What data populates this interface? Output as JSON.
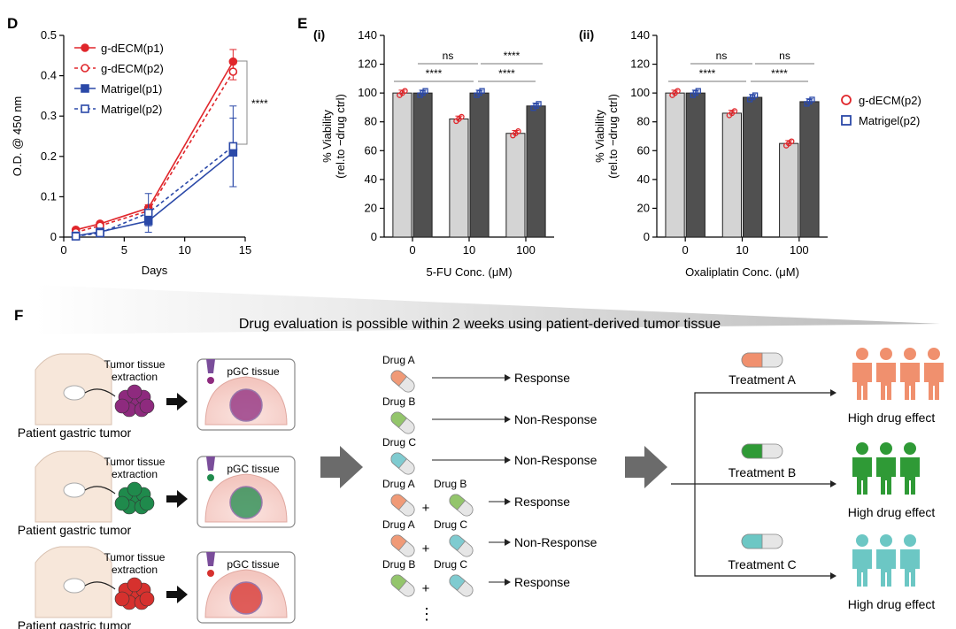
{
  "panel_labels": {
    "d": "D",
    "e": "E",
    "ei": "(i)",
    "eii": "(ii)",
    "f": "F"
  },
  "chart_data": [
    {
      "id": "D",
      "type": "line",
      "xlabel": "Days",
      "ylabel": "O.D. @ 450 nm",
      "xlim": [
        0,
        15
      ],
      "ylim": [
        0,
        0.5
      ],
      "xticks": [
        0,
        5,
        10,
        15
      ],
      "yticks": [
        0,
        0.1,
        0.2,
        0.3,
        0.4,
        0.5
      ],
      "x": [
        1,
        3,
        7,
        14
      ],
      "series": [
        {
          "name": "g-dECM(p1)",
          "values": [
            0.018,
            0.033,
            0.072,
            0.435
          ],
          "err": [
            0.004,
            0.004,
            0.008,
            0.03
          ],
          "color": "#e0262b",
          "marker": "filled-circle",
          "dash": false
        },
        {
          "name": "g-dECM(p2)",
          "values": [
            0.012,
            0.028,
            0.065,
            0.41
          ],
          "err": [
            0.004,
            0.004,
            0.006,
            0.02
          ],
          "color": "#e0262b",
          "marker": "open-circle",
          "dash": true
        },
        {
          "name": "Matrigel(p1)",
          "values": [
            0.003,
            0.013,
            0.04,
            0.21
          ],
          "err": [
            0.003,
            0.004,
            0.012,
            0.085
          ],
          "color": "#2b49a8",
          "marker": "filled-square",
          "dash": false
        },
        {
          "name": "Matrigel(p2)",
          "values": [
            0.002,
            0.01,
            0.06,
            0.225
          ],
          "err": [
            0.003,
            0.004,
            0.048,
            0.1
          ],
          "color": "#2b49a8",
          "marker": "open-square",
          "dash": true
        }
      ],
      "annotation": "****"
    },
    {
      "id": "E-i",
      "type": "bar",
      "xlabel": "5-FU Conc. (μM)",
      "ylabel_line1": "% Viability",
      "ylabel_line2": "(rel.to −drug ctrl)",
      "ylim": [
        0,
        140
      ],
      "yticks": [
        0,
        20,
        40,
        60,
        80,
        100,
        120,
        140
      ],
      "categories": [
        "0",
        "10",
        "100"
      ],
      "series": [
        {
          "name": "g-dECM(p2)",
          "values": [
            100,
            82,
            72
          ],
          "color": "#d4d4d4"
        },
        {
          "name": "Matrigel(p2)",
          "values": [
            100,
            100,
            91
          ],
          "color": "#505050"
        }
      ],
      "significance": [
        {
          "label": "ns",
          "level": 1
        },
        {
          "label": "****",
          "level": 1
        },
        {
          "label": "****",
          "level": 0
        },
        {
          "label": "****",
          "level": 0
        }
      ]
    },
    {
      "id": "E-ii",
      "type": "bar",
      "xlabel": "Oxaliplatin Conc. (μM)",
      "ylabel_line1": "% Viability",
      "ylabel_line2": "(rel.to −drug ctrl)",
      "ylim": [
        0,
        140
      ],
      "yticks": [
        0,
        20,
        40,
        60,
        80,
        100,
        120,
        140
      ],
      "categories": [
        "0",
        "10",
        "100"
      ],
      "series": [
        {
          "name": "g-dECM(p2)",
          "values": [
            100,
            86,
            65
          ],
          "color": "#d4d4d4"
        },
        {
          "name": "Matrigel(p2)",
          "values": [
            100,
            97,
            94
          ],
          "color": "#505050"
        }
      ],
      "significance": [
        {
          "label": "ns",
          "level": 1
        },
        {
          "label": "ns",
          "level": 1
        },
        {
          "label": "****",
          "level": 0
        },
        {
          "label": "****",
          "level": 0
        }
      ]
    }
  ],
  "legend_e": [
    {
      "label": "g-dECM(p2)",
      "color": "#e0262b",
      "marker": "open-circle"
    },
    {
      "label": "Matrigel(p2)",
      "color": "#2b49a8",
      "marker": "open-square"
    }
  ],
  "workflow": {
    "banner": "Drug evaluation is possible within 2 weeks using patient-derived tumor tissue",
    "rows": [
      {
        "patient": "Patient gastric tumor",
        "extraction": [
          "Tumor tissue",
          "extraction"
        ],
        "tissue": "pGC tissue",
        "color": "#8e2a7e"
      },
      {
        "patient": "Patient gastric tumor",
        "extraction": [
          "Tumor tissue",
          "extraction"
        ],
        "tissue": "pGC tissue",
        "color": "#1f8a4c"
      },
      {
        "patient": "Patient gastric tumor",
        "extraction": [
          "Tumor tissue",
          "extraction"
        ],
        "tissue": "pGC tissue",
        "color": "#d6312e"
      }
    ],
    "drugs": [
      {
        "labels": [
          "Drug A"
        ],
        "result": "Response"
      },
      {
        "labels": [
          "Drug B"
        ],
        "result": "Non-Response"
      },
      {
        "labels": [
          "Drug C"
        ],
        "result": "Non-Response"
      },
      {
        "labels": [
          "Drug A",
          "Drug B"
        ],
        "result": "Response"
      },
      {
        "labels": [
          "Drug A",
          "Drug C"
        ],
        "result": "Non-Response"
      },
      {
        "labels": [
          "Drug B",
          "Drug C"
        ],
        "result": "Response"
      }
    ],
    "plus": "+",
    "ellipsis": "⋮",
    "treatments": [
      {
        "name": "Treatment A",
        "effect": "High drug effect",
        "color": "#f0906e",
        "people": 4
      },
      {
        "name": "Treatment B",
        "effect": "High drug effect",
        "color": "#2f9a36",
        "people": 3
      },
      {
        "name": "Treatment C",
        "effect": "High drug effect",
        "color": "#6cc7c4",
        "people": 3
      }
    ]
  },
  "colors": {
    "drugA": "#f09a77",
    "drugB": "#93c56b",
    "drugC": "#7fcbd0",
    "arrowGray": "#6b6b6b"
  }
}
